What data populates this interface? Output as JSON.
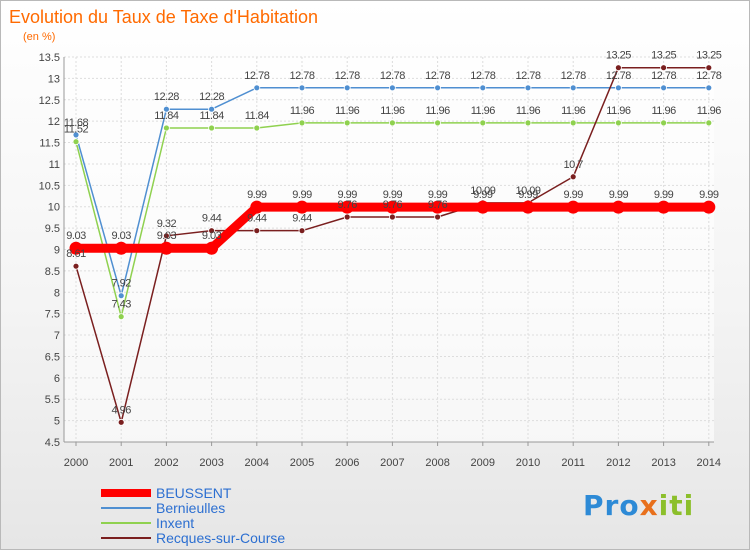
{
  "title": "Evolution du Taux de Taxe d'Habitation",
  "unit": "(en %)",
  "logo": {
    "p1": "Pro",
    "p2": "x",
    "p3": "iti"
  },
  "chart_data": {
    "type": "line",
    "x": [
      "2000",
      "2001",
      "2002",
      "2003",
      "2004",
      "2005",
      "2006",
      "2007",
      "2008",
      "2009",
      "2010",
      "2011",
      "2012",
      "2013",
      "2014"
    ],
    "ylim": [
      4.5,
      13.5
    ],
    "yticks": [
      4.5,
      5,
      5.5,
      6,
      6.5,
      7,
      7.5,
      8,
      8.5,
      9,
      9.5,
      10,
      10.5,
      11,
      11.5,
      12,
      12.5,
      13,
      13.5
    ],
    "grid": true,
    "legend_position": "bottom-left",
    "series": [
      {
        "name": "BEUSSENT",
        "color": "#ff0000",
        "values": [
          9.03,
          9.03,
          9.03,
          9.03,
          9.99,
          9.99,
          9.99,
          9.99,
          9.99,
          9.99,
          9.99,
          9.99,
          9.99,
          9.99,
          9.99
        ],
        "labels": [
          "9.03",
          "9.03",
          "9.03",
          "9.03",
          "9.99",
          "9.99",
          "9.99",
          "9.99",
          "9.99",
          "9.99",
          "9.99",
          "9.99",
          "9.99",
          "9.99",
          "9.99"
        ]
      },
      {
        "name": "Bernieulles",
        "color": "#4f8fd1",
        "values": [
          11.68,
          7.92,
          12.28,
          12.28,
          12.78,
          12.78,
          12.78,
          12.78,
          12.78,
          12.78,
          12.78,
          12.78,
          12.78,
          12.78,
          12.78
        ],
        "labels": [
          "11.68",
          "7.92",
          "12.28",
          "12.28",
          "12.78",
          "12.78",
          "12.78",
          "12.78",
          "12.78",
          "12.78",
          "12.78",
          "12.78",
          "12.78",
          "12.78",
          "12.78"
        ]
      },
      {
        "name": "Inxent",
        "color": "#8fd14f",
        "values": [
          11.52,
          7.43,
          11.84,
          11.84,
          11.84,
          11.96,
          11.96,
          11.96,
          11.96,
          11.96,
          11.96,
          11.96,
          11.96,
          11.96,
          11.96
        ],
        "labels": [
          "11.52",
          "7.43",
          "11.84",
          "11.84",
          "11.84",
          "11.96",
          "11.96",
          "11.96",
          "11.96",
          "11.96",
          "11.96",
          "11.96",
          "11.96",
          "11.96",
          "11.96"
        ]
      },
      {
        "name": "Recques-sur-Course",
        "color": "#7a1f1f",
        "values": [
          8.61,
          4.96,
          9.32,
          9.44,
          9.44,
          9.44,
          9.76,
          9.76,
          9.76,
          10.09,
          10.09,
          10.7,
          13.25,
          13.25,
          13.25
        ],
        "labels": [
          "8.61",
          "4.96",
          "9.32",
          "9.44",
          "9.44",
          "9.44",
          "9.76",
          "9.76",
          "9.76",
          "10.09",
          "10.09",
          "10.7",
          "13.25",
          "13.25",
          "13.25"
        ]
      }
    ]
  }
}
